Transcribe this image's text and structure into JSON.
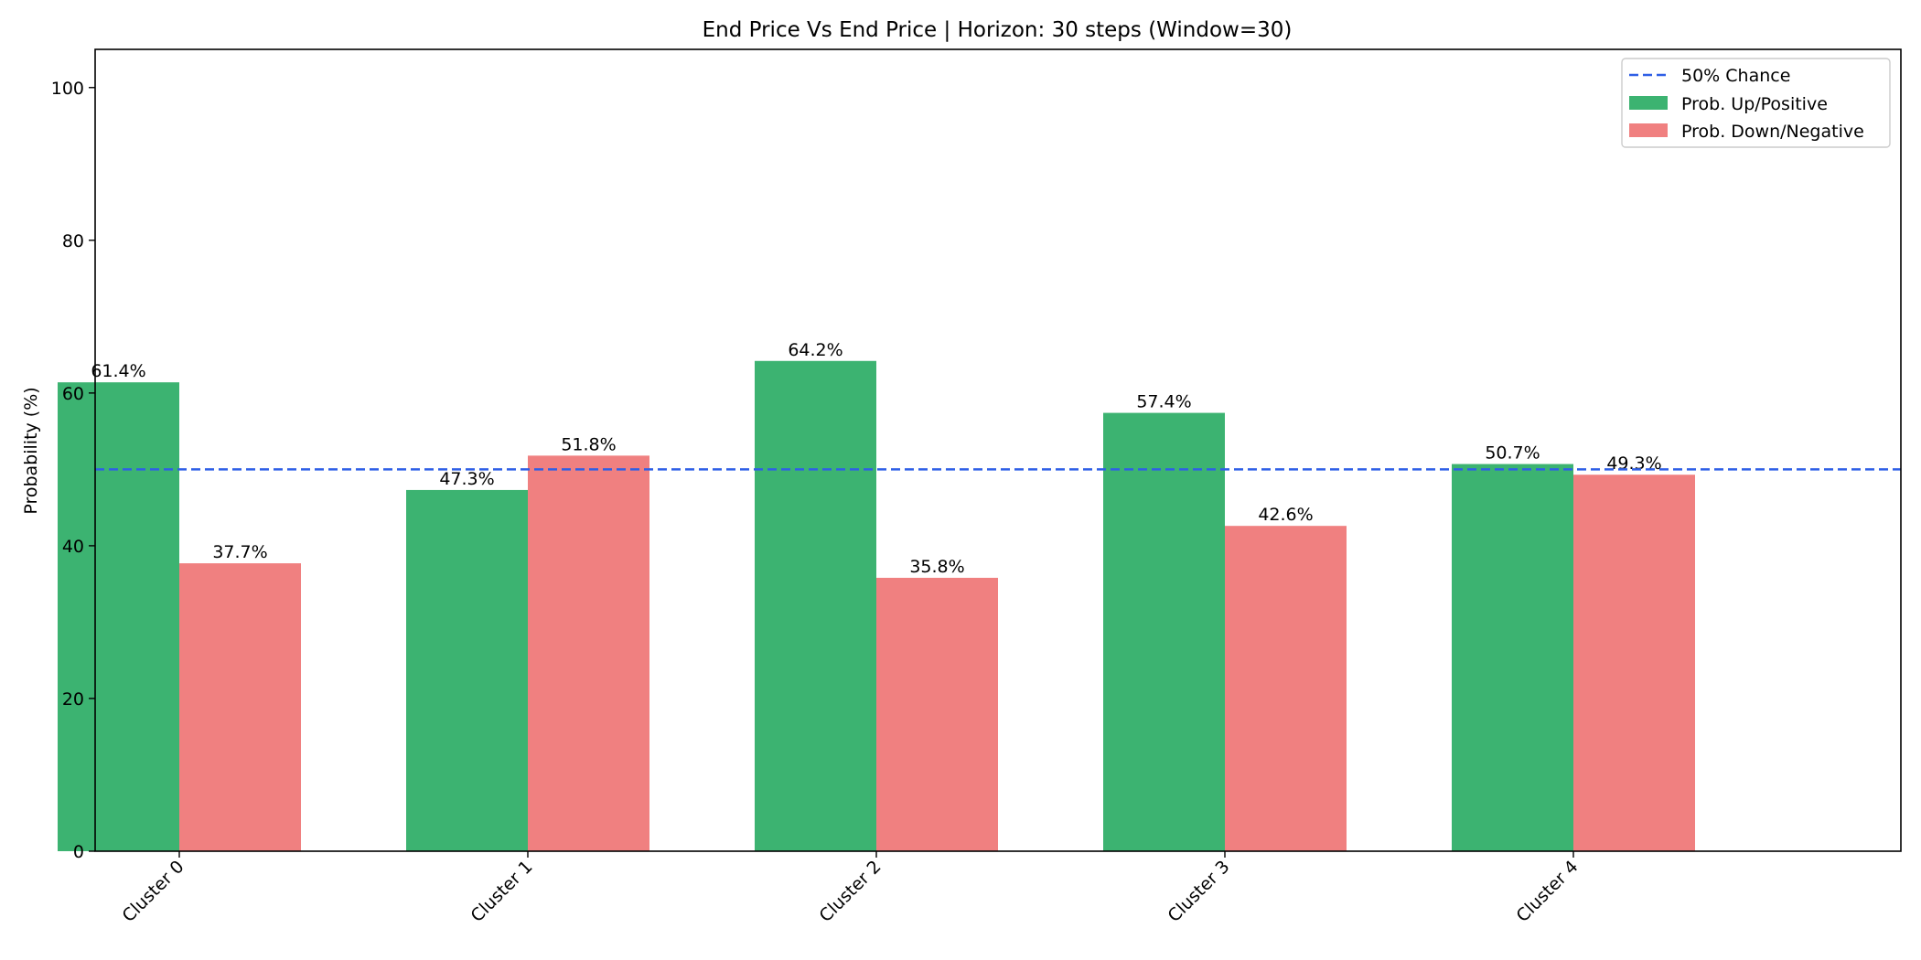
{
  "chart_data": {
    "type": "bar",
    "title": "End Price Vs End Price | Horizon: 30 steps (Window=30)",
    "xlabel": "",
    "ylabel": "Probability (%)",
    "categories": [
      "Cluster 0",
      "Cluster 1",
      "Cluster 2",
      "Cluster 3",
      "Cluster 4"
    ],
    "series": [
      {
        "name": "Prob. Up/Positive",
        "color": "#3cb371",
        "values": [
          61.4,
          47.3,
          64.2,
          57.4,
          50.7
        ],
        "labels": [
          "61.4%",
          "47.3%",
          "64.2%",
          "57.4%",
          "50.7%"
        ]
      },
      {
        "name": "Prob. Down/Negative",
        "color": "#f08080",
        "values": [
          37.7,
          51.8,
          35.8,
          42.6,
          49.3
        ],
        "labels": [
          "37.7%",
          "51.8%",
          "35.8%",
          "42.6%",
          "49.3%"
        ]
      }
    ],
    "reference_line": {
      "name": "50% Chance",
      "value": 50,
      "color": "#2f5fe6",
      "style": "dashed"
    },
    "ylim": [
      0,
      105
    ],
    "yticks": [
      0,
      20,
      40,
      60,
      80,
      100
    ],
    "ytick_labels": [
      "0",
      "20",
      "40",
      "60",
      "80",
      "100"
    ],
    "grid": false,
    "legend_position": "top-right"
  }
}
